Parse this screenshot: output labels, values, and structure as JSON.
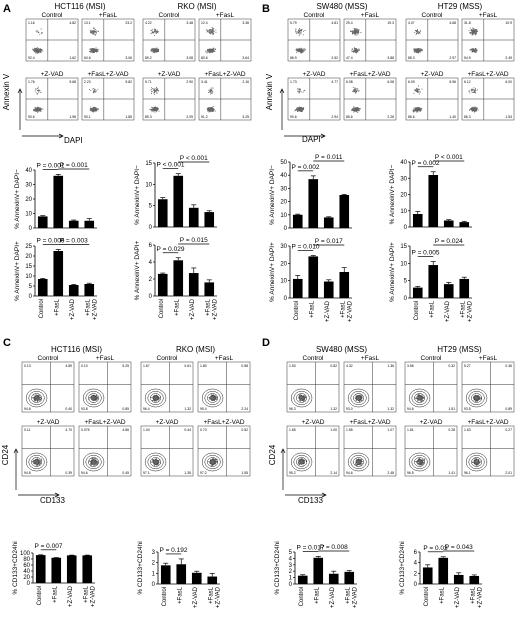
{
  "panels": {
    "A": {
      "letter": "A",
      "groups": [
        {
          "title": "HCT116 (MSI)",
          "labels": [
            "Control",
            "+FasL",
            "+Z-VAD",
            "+FasL+Z-VAD"
          ],
          "quads": [
            [
              "1.16",
              "4.82",
              "92.4",
              "1.62"
            ],
            [
              "13.1",
              "23.2",
              "60.6",
              "3.06"
            ],
            [
              "1.76",
              "5.68",
              "90.6",
              "1.96"
            ],
            [
              "2.23",
              "5.82",
              "90.1",
              "1.85"
            ]
          ]
        },
        {
          "title": "RKO (MSI)",
          "labels": [
            "Control",
            "+FasL",
            "+Z-VAD",
            "+FasL+Z-VAD"
          ],
          "quads": [
            [
              "4.22",
              "3.48",
              "89.2",
              "3.08"
            ],
            [
              "12.4",
              "3.36",
              "80.6",
              "3.64"
            ],
            [
              "5.71",
              "2.90",
              "89.3",
              "2.09"
            ],
            [
              "3.41",
              "2.16",
              "91.2",
              "3.25"
            ]
          ]
        }
      ],
      "yaxis": "Annexin V",
      "xaxis": "DAPI"
    },
    "B": {
      "letter": "B",
      "groups": [
        {
          "title": "SW480 (MSS)",
          "labels": [
            "Control",
            "+FasL",
            "+Z-VAD",
            "+FasL+Z-VAD"
          ],
          "quads": [
            [
              "5.79",
              "4.81",
              "86.9",
              "2.52"
            ],
            [
              "29.4",
              "19.3",
              "47.4",
              "3.88"
            ],
            [
              "1.73",
              "4.77",
              "90.6",
              "2.94"
            ],
            [
              "6.08",
              "6.08",
              "85.6",
              "2.26"
            ]
          ]
        },
        {
          "title": "HT29 (MSS)",
          "labels": [
            "Control",
            "+FasL",
            "+Z-VAD",
            "+FasL+Z-VAD"
          ],
          "quads": [
            [
              "4.07",
              "4.68",
              "88.3",
              "2.97"
            ],
            [
              "31.8",
              "10.9",
              "54.9",
              "2.49"
            ],
            [
              "6.09",
              "5.96",
              "86.6",
              "1.40"
            ],
            [
              "6.12",
              "6.00",
              "86.3",
              "1.53"
            ]
          ]
        }
      ],
      "yaxis": "Annexin V",
      "xaxis": "DAPI"
    },
    "C": {
      "letter": "C",
      "groups": [
        {
          "title": "HCT116 (MSI)",
          "labels": [
            "Control",
            "+FasL",
            "+Z-VAD",
            "+FasL+Z-VAD"
          ],
          "quads": [
            [
              "0.13",
              "4.89",
              "94.6",
              "0.40"
            ],
            [
              "0.10",
              "5.25",
              "93.8",
              "0.85"
            ],
            [
              "0.11",
              "4.70",
              "94.8",
              "0.39"
            ],
            [
              "0.075",
              "4.86",
              "94.6",
              "0.45"
            ]
          ]
        },
        {
          "title": "RKO (MSI)",
          "labels": [
            "Control",
            "+FasL",
            "+Z-VAD",
            "+FasL+Z-VAD"
          ],
          "quads": [
            [
              "1.67",
              "0.61",
              "96.4",
              "1.32"
            ],
            [
              "1.80",
              "0.58",
              "95.4",
              "2.24"
            ],
            [
              "1.04",
              "0.44",
              "97.1",
              "1.35"
            ],
            [
              "0.70",
              "0.52",
              "97.2",
              "1.55"
            ]
          ]
        }
      ],
      "yaxis": "CD24",
      "xaxis": "CD133"
    },
    "D": {
      "letter": "D",
      "groups": [
        {
          "title": "SW480 (MSS)",
          "labels": [
            "Control",
            "+FasL",
            "+Z-VAD",
            "+FasL+Z-VAD"
          ],
          "quads": [
            [
              "1.53",
              "0.82",
              "96.3",
              "1.32"
            ],
            [
              "4.32",
              "1.36",
              "93.0",
              "1.32"
            ],
            [
              "1.65",
              "1.00",
              "95.2",
              "2.14"
            ],
            [
              "1.85",
              "1.07",
              "94.6",
              "2.48"
            ]
          ]
        },
        {
          "title": "HT29 (MSS)",
          "labels": [
            "Control",
            "+FasL",
            "+Z-VAD",
            "+FasL+Z-VAD"
          ],
          "quads": [
            [
              "3.56",
              "0.32",
              "94.6",
              "1.51"
            ],
            [
              "5.27",
              "0.36",
              "93.5",
              "0.89"
            ],
            [
              "1.81",
              "0.28",
              "96.5",
              "1.41"
            ],
            [
              "1.63",
              "0.27",
              "96.1",
              "2.01"
            ]
          ]
        }
      ],
      "yaxis": "CD24",
      "xaxis": "CD133"
    }
  },
  "chart_data": [
    {
      "id": "A-HCT-top",
      "type": "bar",
      "categories": [
        "Control",
        "+FasL",
        "+Z-VAD",
        "+FasL\n+Z-VAD"
      ],
      "values": [
        8,
        36,
        5,
        5
      ],
      "errors": [
        0.5,
        1,
        0.5,
        1.5
      ],
      "ylabel": "% AnnexinV+ DAPI−",
      "ylim": [
        0,
        40
      ],
      "yticks": [
        0,
        10,
        20,
        30,
        40
      ],
      "show_x": false,
      "sig": [
        {
          "from": 0,
          "to": 1,
          "label": "P = 0.001"
        },
        {
          "from": 1,
          "to": 3,
          "label": "P = 0.001"
        }
      ]
    },
    {
      "id": "A-HCT-bot",
      "type": "bar",
      "categories": [
        "Control",
        "+FasL",
        "+Z-VAD",
        "+FasL\n+Z-VAD"
      ],
      "values": [
        8.5,
        22.5,
        5.5,
        6
      ],
      "errors": [
        0.3,
        0.8,
        0.3,
        0.4
      ],
      "ylabel": "% AnnexinV+ DAPI+",
      "ylim": [
        0,
        25
      ],
      "yticks": [
        0,
        5,
        10,
        15,
        20,
        25
      ],
      "show_x": true,
      "sig": [
        {
          "from": 0,
          "to": 1,
          "label": "P = 0.006"
        },
        {
          "from": 1,
          "to": 3,
          "label": "P = 0.003"
        }
      ]
    },
    {
      "id": "A-RKO-top",
      "type": "bar",
      "categories": [
        "Control",
        "+FasL",
        "+Z-VAD",
        "+FasL\n+Z-VAD"
      ],
      "values": [
        6.5,
        12,
        4.5,
        3.5
      ],
      "errors": [
        0.4,
        0.5,
        0.7,
        0.3
      ],
      "ylabel": "% AnnexinV+ DAPI−",
      "ylim": [
        0,
        15
      ],
      "yticks": [
        0,
        5,
        10,
        15
      ],
      "show_x": false,
      "sig": [
        {
          "from": 0,
          "to": 1,
          "label": "P < 0.001"
        },
        {
          "from": 1,
          "to": 3,
          "label": "P < 0.001"
        }
      ]
    },
    {
      "id": "A-RKO-bot",
      "type": "bar",
      "categories": [
        "Control",
        "+FasL",
        "+Z-VAD",
        "+FasL\n+Z-VAD"
      ],
      "values": [
        2.6,
        4.2,
        2.7,
        1.6
      ],
      "errors": [
        0.1,
        0.3,
        0.6,
        0.3
      ],
      "ylabel": "% AnnexinV+ DAPI+",
      "ylim": [
        0,
        6
      ],
      "yticks": [
        0,
        2,
        4,
        6
      ],
      "show_x": true,
      "sig": [
        {
          "from": 0,
          "to": 1,
          "label": "P = 0.029"
        },
        {
          "from": 1,
          "to": 3,
          "label": "P = 0.015"
        }
      ]
    },
    {
      "id": "B-SW-top",
      "type": "bar",
      "categories": [
        "Control",
        "+FasL",
        "+Z-VAD",
        "+FasL\n+Z-VAD"
      ],
      "values": [
        10,
        37,
        8,
        25
      ],
      "errors": [
        0.5,
        2.5,
        0.5,
        0.5
      ],
      "ylabel": "% AnnexinV+ DAPI−",
      "ylim": [
        0,
        50
      ],
      "yticks": [
        0,
        10,
        20,
        30,
        40,
        50
      ],
      "show_x": false,
      "sig": [
        {
          "from": 0,
          "to": 1,
          "label": "P = 0.002"
        },
        {
          "from": 1,
          "to": 3,
          "label": "P = 0.011"
        }
      ]
    },
    {
      "id": "B-SW-bot",
      "type": "bar",
      "categories": [
        "Control",
        "+FasL",
        "+Z-VAD",
        "+FasL\n+Z-VAD"
      ],
      "values": [
        11,
        24,
        9.5,
        15
      ],
      "errors": [
        2,
        0.5,
        1,
        2.5
      ],
      "ylabel": "% AnnexinV+ DAPI+",
      "ylim": [
        0,
        30
      ],
      "yticks": [
        0,
        10,
        20,
        30
      ],
      "show_x": true,
      "sig": [
        {
          "from": 0,
          "to": 1,
          "label": "P = 0.010"
        },
        {
          "from": 1,
          "to": 3,
          "label": "P = 0.017"
        }
      ]
    },
    {
      "id": "B-HT-top",
      "type": "bar",
      "categories": [
        "Control",
        "+FasL",
        "+Z-VAD",
        "+FasL\n+Z-VAD"
      ],
      "values": [
        8,
        32,
        4,
        3
      ],
      "errors": [
        1.5,
        2,
        0.5,
        0.5
      ],
      "ylabel": "% AnnexinV+ DAPI−",
      "ylim": [
        0,
        40
      ],
      "yticks": [
        0,
        10,
        20,
        30,
        40
      ],
      "show_x": false,
      "sig": [
        {
          "from": 0,
          "to": 1,
          "label": "P = 0.002"
        },
        {
          "from": 1,
          "to": 3,
          "label": "P < 0.001"
        }
      ]
    },
    {
      "id": "B-HT-bot",
      "type": "bar",
      "categories": [
        "Control",
        "+FasL",
        "+Z-VAD",
        "+FasL\n+Z-VAD"
      ],
      "values": [
        3,
        9.5,
        4,
        5.5
      ],
      "errors": [
        0.3,
        1,
        0.5,
        0.5
      ],
      "ylabel": "% AnnexinV+ DAPI+",
      "ylim": [
        0,
        15
      ],
      "yticks": [
        0,
        5,
        10,
        15
      ],
      "show_x": true,
      "sig": [
        {
          "from": 0,
          "to": 1,
          "label": "P = 0.005"
        },
        {
          "from": 1,
          "to": 3,
          "label": "P = 0.024"
        }
      ]
    },
    {
      "id": "C-HCT",
      "type": "bar",
      "categories": [
        "Control",
        "+FasL",
        "+Z-VAD",
        "+FasL\n+Z-VAD"
      ],
      "values": [
        93,
        84,
        92,
        92
      ],
      "errors": [
        1,
        1,
        1,
        1
      ],
      "ylabel": "% CD133+CD24hi",
      "ylim": [
        0,
        100
      ],
      "yticks": [
        0,
        20,
        40,
        60,
        80,
        100
      ],
      "show_x": true,
      "sig": [
        {
          "from": 0,
          "to": 1,
          "label": "P = 0.007"
        }
      ]
    },
    {
      "id": "C-RKO",
      "type": "bar",
      "categories": [
        "Control",
        "+FasL",
        "+Z-VAD",
        "+FasL\n+Z-VAD"
      ],
      "values": [
        1.75,
        1.85,
        1.05,
        0.7
      ],
      "errors": [
        0.2,
        0.5,
        0.15,
        0.3
      ],
      "ylabel": "% CD133+CD24hi",
      "ylim": [
        0,
        3
      ],
      "yticks": [
        0,
        1,
        2,
        3
      ],
      "show_x": true,
      "sig": [
        {
          "from": 0,
          "to": 1,
          "label": "P = 0.192"
        }
      ]
    },
    {
      "id": "D-SW",
      "type": "bar",
      "categories": [
        "Control",
        "+FasL",
        "+Z-VAD",
        "+FasL\n+Z-VAD"
      ],
      "values": [
        1.3,
        4.1,
        1.6,
        1.9
      ],
      "errors": [
        0.15,
        0.2,
        0.4,
        0.2
      ],
      "ylabel": "% CD133+CD24hi",
      "ylim": [
        0,
        5
      ],
      "yticks": [
        0,
        1,
        2,
        3,
        4,
        5
      ],
      "show_x": true,
      "sig": [
        {
          "from": 0,
          "to": 1,
          "label": "P = 0.017"
        },
        {
          "from": 1,
          "to": 3,
          "label": "P = 0.008"
        }
      ]
    },
    {
      "id": "D-HT",
      "type": "bar",
      "categories": [
        "Control",
        "+FasL",
        "+Z-VAD",
        "+FasL\n+Z-VAD"
      ],
      "values": [
        3.1,
        4.9,
        1.7,
        1.5
      ],
      "errors": [
        0.5,
        0.2,
        0.4,
        0.2
      ],
      "ylabel": "% CD133+CD24hi",
      "ylim": [
        0,
        6
      ],
      "yticks": [
        0,
        2,
        4,
        6
      ],
      "show_x": true,
      "sig": [
        {
          "from": 0,
          "to": 1,
          "label": "P = 0.03"
        },
        {
          "from": 1,
          "to": 3,
          "label": "P = 0.043"
        }
      ]
    }
  ]
}
